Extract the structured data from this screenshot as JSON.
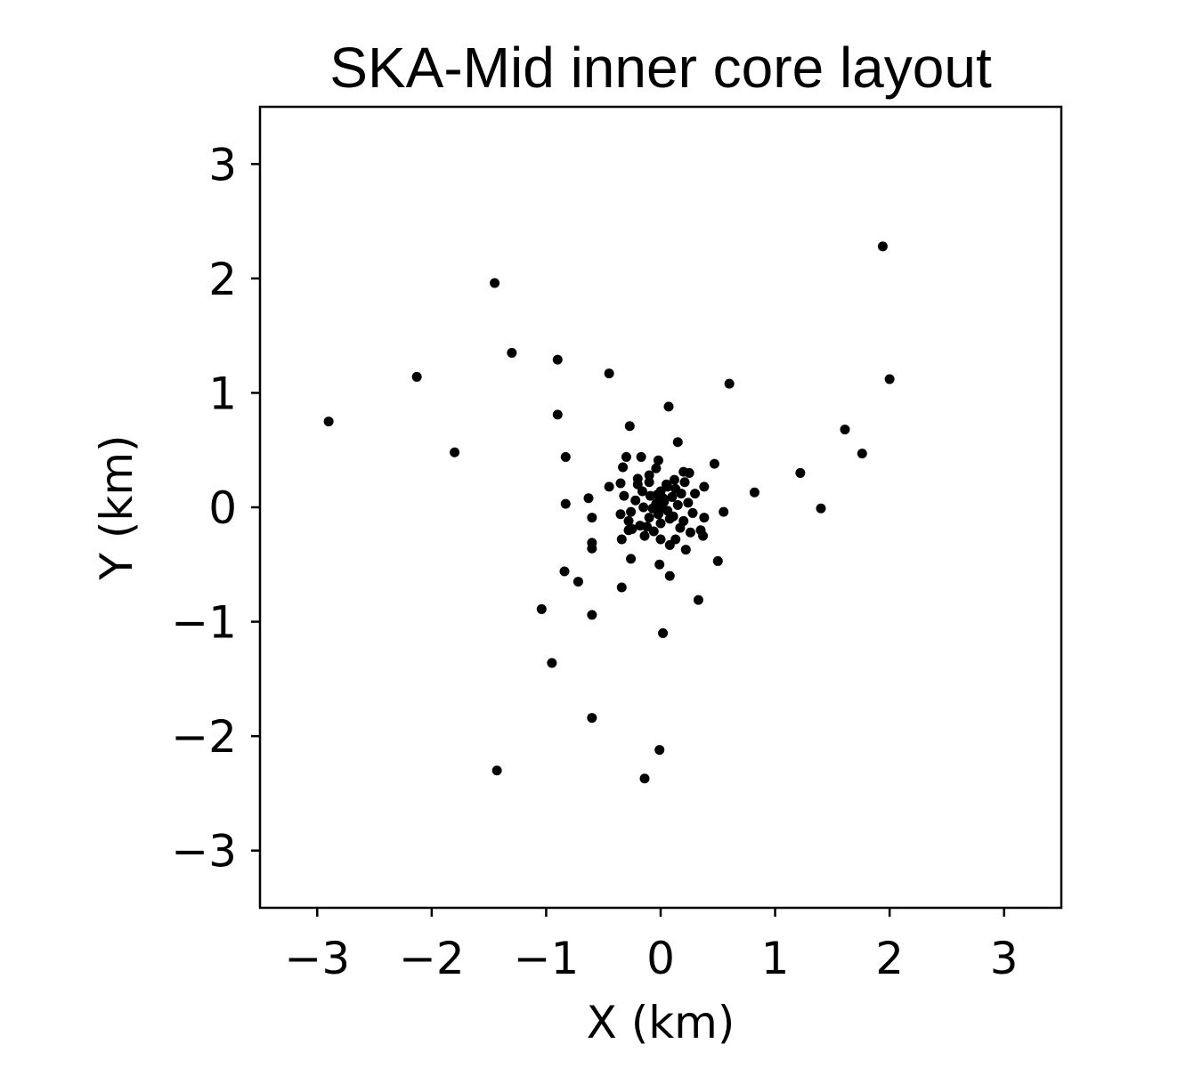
{
  "chart_data": {
    "type": "scatter",
    "title": "SKA-Mid inner core layout",
    "xlabel": "X (km)",
    "ylabel": "Y (km)",
    "xlim": [
      -3.5,
      3.5
    ],
    "ylim": [
      -3.5,
      3.5
    ],
    "xticks": [
      -3,
      -2,
      -1,
      0,
      1,
      2,
      3
    ],
    "yticks": [
      -3,
      -2,
      -1,
      0,
      1,
      2,
      3
    ],
    "xtick_labels": [
      "−3",
      "−2",
      "−1",
      "0",
      "1",
      "2",
      "3"
    ],
    "ytick_labels": [
      "−3",
      "−2",
      "−1",
      "0",
      "1",
      "2",
      "3"
    ],
    "grid": false,
    "marker_color": "#000000",
    "points": [
      [
        1.94,
        2.28
      ],
      [
        2.0,
        1.12
      ],
      [
        -1.45,
        1.96
      ],
      [
        -1.3,
        1.35
      ],
      [
        -0.9,
        1.29
      ],
      [
        -0.45,
        1.17
      ],
      [
        -2.13,
        1.14
      ],
      [
        0.6,
        1.08
      ],
      [
        -2.9,
        0.75
      ],
      [
        0.07,
        0.88
      ],
      [
        -0.9,
        0.81
      ],
      [
        -0.27,
        0.71
      ],
      [
        1.61,
        0.68
      ],
      [
        1.76,
        0.47
      ],
      [
        -1.8,
        0.48
      ],
      [
        0.15,
        0.57
      ],
      [
        -0.83,
        0.44
      ],
      [
        -0.3,
        0.44
      ],
      [
        -0.17,
        0.44
      ],
      [
        -0.02,
        0.41
      ],
      [
        0.47,
        0.38
      ],
      [
        -0.33,
        0.35
      ],
      [
        0.2,
        0.31
      ],
      [
        0.25,
        0.3
      ],
      [
        1.22,
        0.3
      ],
      [
        -0.2,
        0.25
      ],
      [
        -0.1,
        0.22
      ],
      [
        -0.35,
        0.21
      ],
      [
        -0.45,
        0.18
      ],
      [
        0.38,
        0.18
      ],
      [
        0.06,
        0.18
      ],
      [
        0.82,
        0.13
      ],
      [
        -0.63,
        0.08
      ],
      [
        -0.83,
        0.03
      ],
      [
        1.4,
        -0.01
      ],
      [
        0.55,
        -0.04
      ],
      [
        -0.35,
        -0.06
      ],
      [
        -0.6,
        -0.09
      ],
      [
        0.38,
        -0.09
      ],
      [
        -0.28,
        -0.12
      ],
      [
        -0.25,
        -0.19
      ],
      [
        0.35,
        -0.2
      ],
      [
        -0.6,
        -0.31
      ],
      [
        0.37,
        -0.25
      ],
      [
        0.22,
        -0.37
      ],
      [
        -0.34,
        -0.28
      ],
      [
        -0.6,
        -0.36
      ],
      [
        0.5,
        -0.47
      ],
      [
        -0.26,
        -0.45
      ],
      [
        -0.01,
        -0.5
      ],
      [
        -0.84,
        -0.56
      ],
      [
        0.08,
        -0.6
      ],
      [
        -0.72,
        -0.65
      ],
      [
        -0.34,
        -0.7
      ],
      [
        0.33,
        -0.81
      ],
      [
        -1.04,
        -0.89
      ],
      [
        -0.6,
        -0.94
      ],
      [
        0.02,
        -1.1
      ],
      [
        -0.95,
        -1.36
      ],
      [
        -0.6,
        -1.84
      ],
      [
        -0.01,
        -2.12
      ],
      [
        -1.43,
        -2.3
      ],
      [
        -0.14,
        -2.37
      ],
      [
        0.0,
        0.0
      ],
      [
        0.03,
        0.05
      ],
      [
        -0.04,
        0.03
      ],
      [
        0.06,
        -0.03
      ],
      [
        -0.02,
        -0.06
      ],
      [
        0.1,
        0.09
      ],
      [
        -0.09,
        0.1
      ],
      [
        0.11,
        -0.08
      ],
      [
        -0.1,
        -0.09
      ],
      [
        0.0,
        0.14
      ],
      [
        0.0,
        -0.14
      ],
      [
        0.15,
        0.02
      ],
      [
        -0.15,
        0.0
      ],
      [
        0.18,
        0.12
      ],
      [
        -0.16,
        0.14
      ],
      [
        0.2,
        -0.12
      ],
      [
        -0.18,
        -0.16
      ],
      [
        0.05,
        0.2
      ],
      [
        -0.06,
        -0.21
      ],
      [
        0.24,
        0.04
      ],
      [
        -0.22,
        0.06
      ],
      [
        0.28,
        -0.05
      ],
      [
        -0.26,
        -0.04
      ],
      [
        0.12,
        0.24
      ],
      [
        -0.14,
        -0.25
      ],
      [
        0.13,
        -0.28
      ],
      [
        -0.1,
        0.28
      ],
      [
        0.3,
        0.12
      ],
      [
        -0.32,
        0.1
      ],
      [
        0.08,
        -0.33
      ],
      [
        -0.04,
        0.34
      ],
      [
        0.26,
        -0.22
      ],
      [
        -0.28,
        -0.2
      ],
      [
        0.02,
        0.08
      ],
      [
        -0.07,
        -0.01
      ],
      [
        0.08,
        -0.1
      ],
      [
        -0.03,
        0.11
      ],
      [
        0.13,
        0.16
      ],
      [
        -0.12,
        -0.17
      ],
      [
        0.17,
        -0.18
      ],
      [
        -0.2,
        0.2
      ],
      [
        0.21,
        0.22
      ],
      [
        0.0,
        -0.28
      ]
    ]
  }
}
